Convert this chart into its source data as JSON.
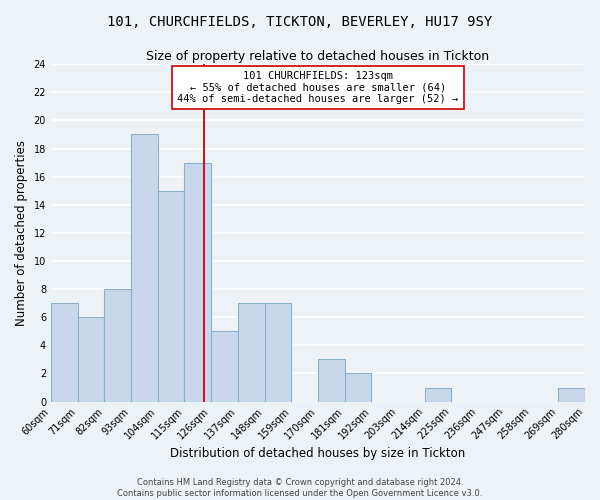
{
  "title": "101, CHURCHFIELDS, TICKTON, BEVERLEY, HU17 9SY",
  "subtitle": "Size of property relative to detached houses in Tickton",
  "xlabel": "Distribution of detached houses by size in Tickton",
  "ylabel": "Number of detached properties",
  "bar_labels": [
    "60sqm",
    "71sqm",
    "82sqm",
    "93sqm",
    "104sqm",
    "115sqm",
    "126sqm",
    "137sqm",
    "148sqm",
    "159sqm",
    "170sqm",
    "181sqm",
    "192sqm",
    "203sqm",
    "214sqm",
    "225sqm",
    "236sqm",
    "247sqm",
    "258sqm",
    "269sqm",
    "280sqm"
  ],
  "bar_values": [
    7,
    6,
    8,
    19,
    15,
    17,
    5,
    7,
    7,
    0,
    3,
    2,
    0,
    0,
    1,
    0,
    0,
    0,
    0,
    1
  ],
  "bar_edges": [
    60,
    71,
    82,
    93,
    104,
    115,
    126,
    137,
    148,
    159,
    170,
    181,
    192,
    203,
    214,
    225,
    236,
    247,
    258,
    269,
    280
  ],
  "bar_color": "#c8d8ea",
  "bar_edge_color": "#8ab0cc",
  "property_line_x": 123,
  "property_line_color": "#cc0000",
  "annotation_title": "101 CHURCHFIELDS: 123sqm",
  "annotation_line1": "← 55% of detached houses are smaller (64)",
  "annotation_line2": "44% of semi-detached houses are larger (52) →",
  "annotation_box_color": "#ffffff",
  "annotation_box_edge_color": "#cc0000",
  "ylim": [
    0,
    24
  ],
  "yticks": [
    0,
    2,
    4,
    6,
    8,
    10,
    12,
    14,
    16,
    18,
    20,
    22,
    24
  ],
  "footer1": "Contains HM Land Registry data © Crown copyright and database right 2024.",
  "footer2": "Contains public sector information licensed under the Open Government Licence v3.0.",
  "background_color": "#edf2f7",
  "grid_color": "#ffffff",
  "title_fontsize": 10,
  "subtitle_fontsize": 9,
  "axis_label_fontsize": 8.5,
  "tick_fontsize": 7,
  "footer_fontsize": 6,
  "annotation_fontsize": 7.5
}
